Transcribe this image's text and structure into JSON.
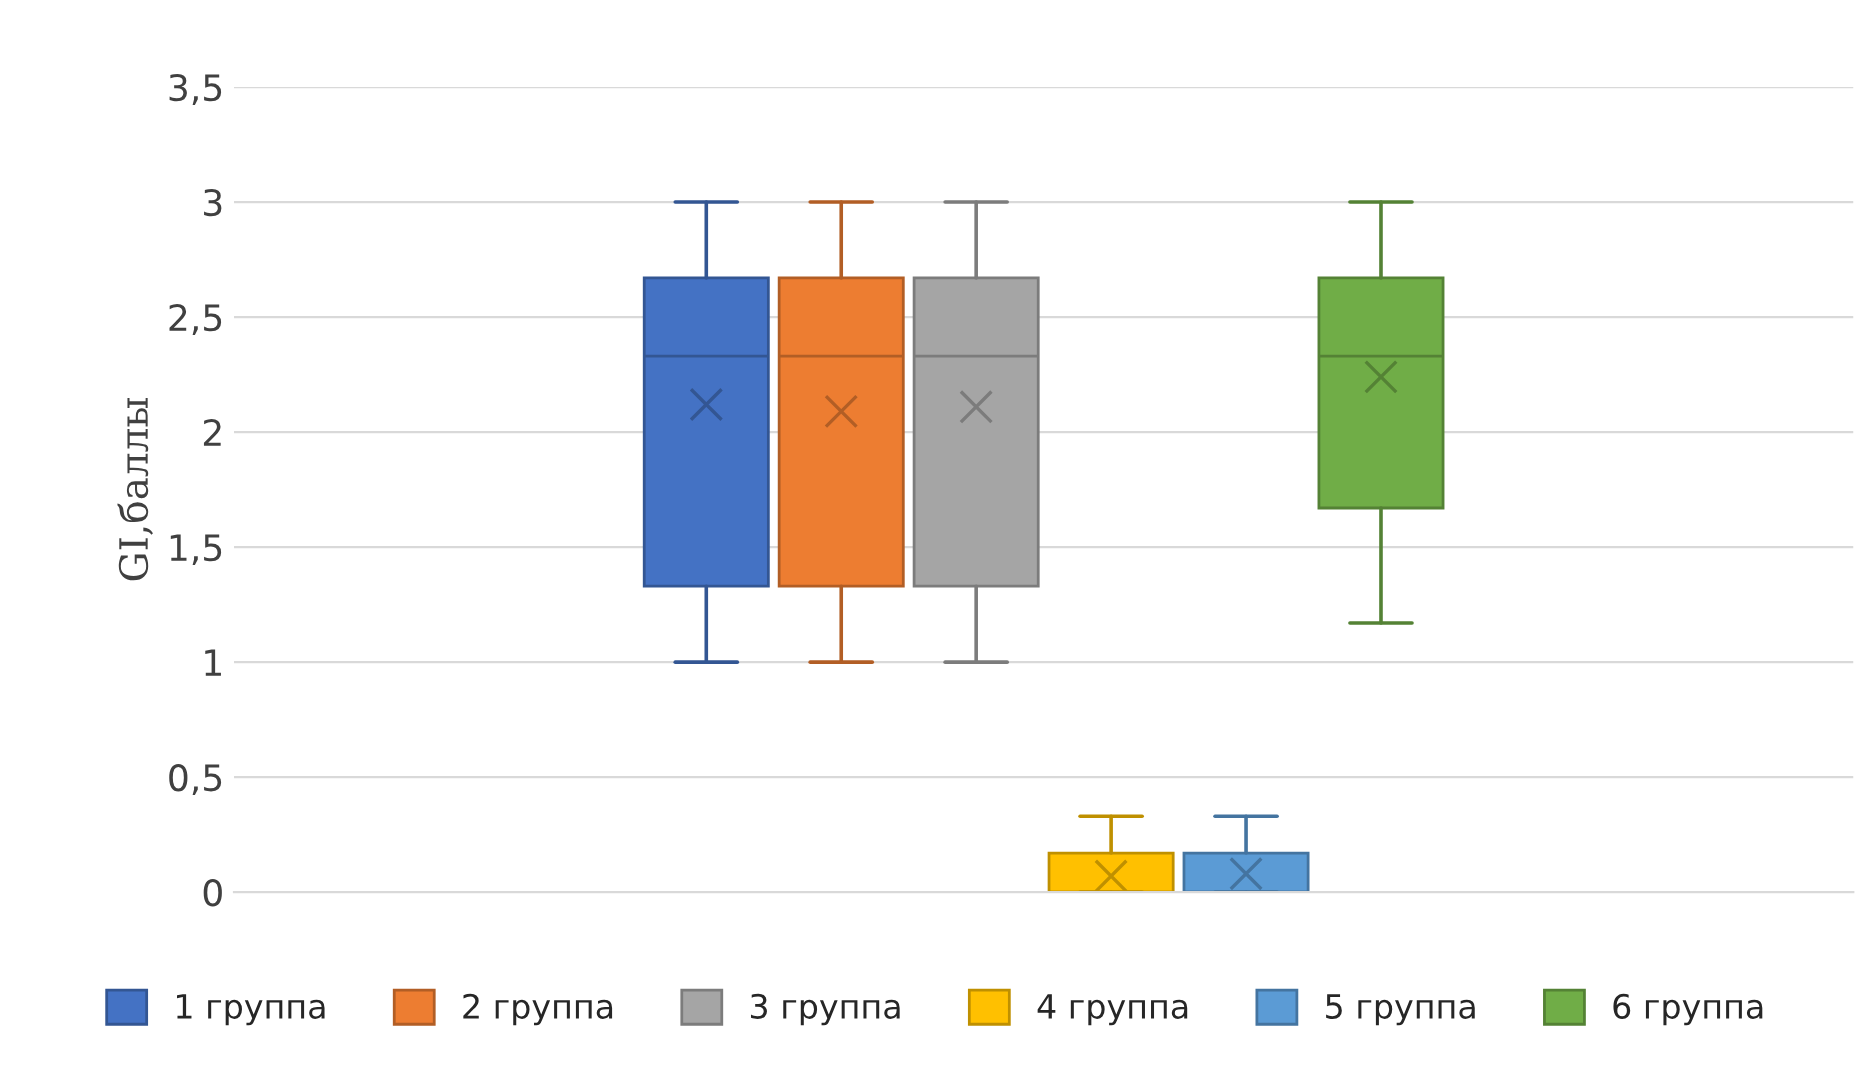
{
  "chart_data": {
    "type": "box",
    "ylabel": "GI,баллы",
    "categories": [
      null
    ],
    "series": [
      {
        "name": "1 группа",
        "color": "#4472c4",
        "boxes": [
          {
            "low": 1,
            "q1": 1.33,
            "median": 2.33,
            "q3": 2.67,
            "high": 3,
            "mean": 2.12
          }
        ]
      },
      {
        "name": "2 группа",
        "color": "#ed7d31",
        "boxes": [
          {
            "low": 1,
            "q1": 1.33,
            "median": 2.33,
            "q3": 2.67,
            "high": 3,
            "mean": 2.09
          }
        ]
      },
      {
        "name": "3 группа",
        "color": "#a5a5a5",
        "boxes": [
          {
            "low": 1,
            "q1": 1.33,
            "median": 2.33,
            "q3": 2.67,
            "high": 3,
            "mean": 2.11
          }
        ]
      },
      {
        "name": "4 группа",
        "color": "#ffc000",
        "boxes": [
          {
            "low": 0,
            "q1": 0,
            "median": 0,
            "q3": 0.17,
            "high": 0.33,
            "mean": 0.07
          }
        ]
      },
      {
        "name": "5 группа",
        "color": "#5b9bd5",
        "boxes": [
          {
            "low": 0,
            "q1": 0,
            "median": 0,
            "q3": 0.17,
            "high": 0.33,
            "mean": 0.08
          }
        ]
      },
      {
        "name": "6 группа",
        "color": "#70ad47",
        "boxes": [
          {
            "low": 1.17,
            "q1": 1.67,
            "median": 2.33,
            "q3": 2.67,
            "high": 3,
            "mean": 2.24
          }
        ]
      }
    ],
    "ylim": [
      0,
      3.5
    ],
    "yticks": [
      0,
      {
        "value": 0.5,
        "label": "0,5"
      },
      1,
      {
        "value": 1.5,
        "label": "1,5"
      },
      2,
      {
        "value": 2.5,
        "label": "2,5"
      },
      3,
      {
        "value": 3.5,
        "label": "3,5"
      }
    ],
    "grid": "y",
    "legend": "bottom"
  }
}
